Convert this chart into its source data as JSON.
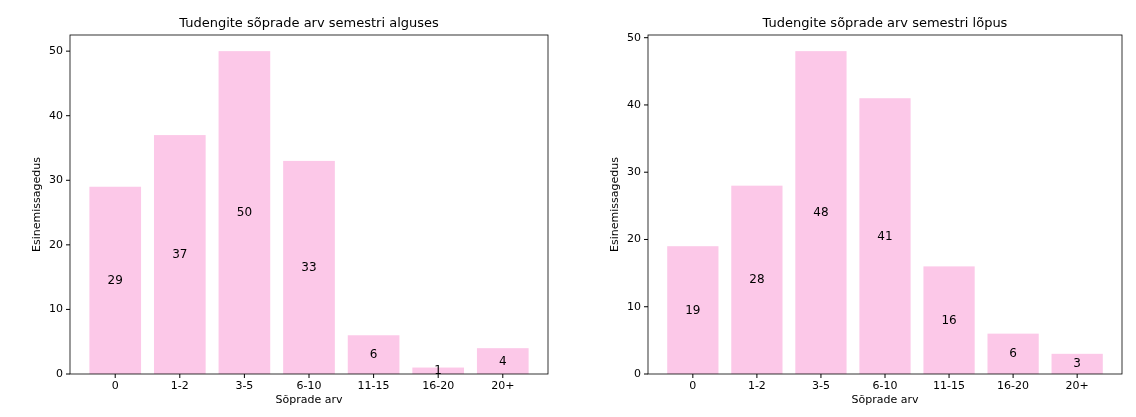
{
  "chart_data": [
    {
      "type": "bar",
      "title": "Tudengite sõprade arv semestri alguses",
      "xlabel": "Sõprade arv",
      "ylabel": "Esinemissagedus",
      "categories": [
        "0",
        "1-2",
        "3-5",
        "6-10",
        "11-15",
        "16-20",
        "20+"
      ],
      "values": [
        29,
        37,
        50,
        33,
        6,
        1,
        4
      ],
      "color": "#fcc8e8",
      "ylim": [
        0,
        52.5
      ],
      "yticks": [
        0,
        10,
        20,
        30,
        40,
        50
      ],
      "data_labels": true
    },
    {
      "type": "bar",
      "title": "Tudengite sõprade arv semestri lõpus",
      "xlabel": "Sõprade arv",
      "ylabel": "Esinemissagedus",
      "categories": [
        "0",
        "1-2",
        "3-5",
        "6-10",
        "11-15",
        "16-20",
        "20+"
      ],
      "values": [
        19,
        28,
        48,
        41,
        16,
        6,
        3
      ],
      "color": "#fcc8e8",
      "ylim": [
        0,
        50.4
      ],
      "yticks": [
        0,
        10,
        20,
        30,
        40,
        50
      ],
      "data_labels": true
    }
  ]
}
